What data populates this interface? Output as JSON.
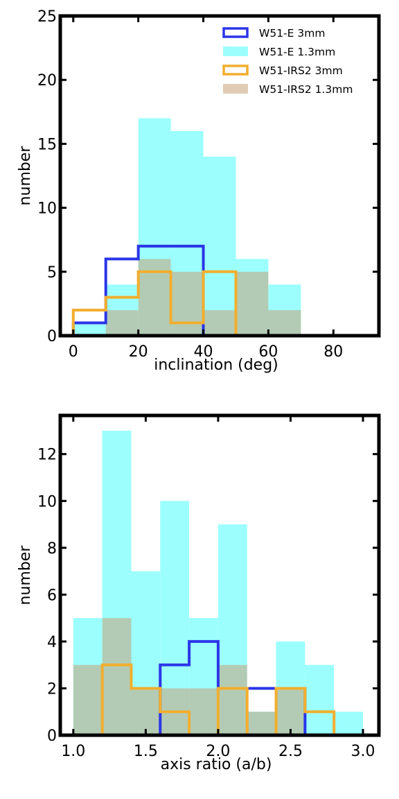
{
  "chart_data": [
    {
      "type": "histogram",
      "xlabel": "inclination (deg)",
      "ylabel": "number",
      "xlim": [
        -4,
        94
      ],
      "ylim": [
        0,
        25
      ],
      "xticks": [
        0,
        20,
        40,
        60,
        80
      ],
      "xtick_labels": [
        "0",
        "20",
        "40",
        "60",
        "80"
      ],
      "yticks": [
        0,
        5,
        10,
        15,
        20,
        25
      ],
      "ytick_labels": [
        "0",
        "5",
        "10",
        "15",
        "20",
        "25"
      ],
      "bin_edges": [
        0,
        10,
        20,
        30,
        40,
        50,
        60,
        70,
        80,
        90
      ],
      "legend_position": "top-right",
      "series": [
        {
          "name": "W51-E 3mm",
          "style": "step",
          "color": "#2b35e8",
          "counts": [
            1,
            6,
            7,
            7,
            0,
            0,
            0,
            0,
            0
          ]
        },
        {
          "name": "W51-E 1.3mm",
          "style": "filled",
          "color": "#9cfffd",
          "counts": [
            1,
            4,
            17,
            16,
            14,
            6,
            4,
            0,
            0
          ]
        },
        {
          "name": "W51-IRS2 3mm",
          "style": "step",
          "color": "#f2ae2e",
          "counts": [
            2,
            3,
            5,
            1,
            5,
            0,
            0,
            0,
            0
          ]
        },
        {
          "name": "W51-IRS2 1.3mm",
          "style": "filled",
          "color": "#c7a078",
          "counts": [
            0,
            2,
            6,
            5,
            2,
            5,
            2,
            0,
            0
          ]
        }
      ]
    },
    {
      "type": "histogram",
      "xlabel": "axis ratio (a/b)",
      "ylabel": "number",
      "xlim": [
        0.91,
        3.11
      ],
      "ylim": [
        0,
        13.65
      ],
      "xticks": [
        1.0,
        1.5,
        2.0,
        2.5,
        3.0
      ],
      "xtick_labels": [
        "1.0",
        "1.5",
        "2.0",
        "2.5",
        "3.0"
      ],
      "yticks": [
        0,
        2,
        4,
        6,
        8,
        10,
        12
      ],
      "ytick_labels": [
        "0",
        "2",
        "4",
        "6",
        "8",
        "10",
        "12"
      ],
      "bin_edges": [
        1.0,
        1.2,
        1.4,
        1.6,
        1.8,
        2.0,
        2.2,
        2.4,
        2.6,
        2.8,
        3.0
      ],
      "series": [
        {
          "name": "W51-E 3mm",
          "style": "step",
          "color": "#2b35e8",
          "counts": [
            0,
            0,
            0,
            3,
            4,
            2,
            2,
            2,
            0,
            0
          ]
        },
        {
          "name": "W51-E 1.3mm",
          "style": "filled",
          "color": "#9cfffd",
          "counts": [
            5,
            13,
            7,
            10,
            5,
            9,
            1,
            4,
            3,
            1
          ]
        },
        {
          "name": "W51-IRS2 3mm",
          "style": "step",
          "color": "#f2ae2e",
          "counts": [
            0,
            3,
            2,
            1,
            0,
            2,
            0,
            2,
            1,
            0
          ]
        },
        {
          "name": "W51-IRS2 1.3mm",
          "style": "filled",
          "color": "#c7a078",
          "counts": [
            3,
            5,
            2,
            2,
            2,
            3,
            1,
            2,
            0,
            0
          ]
        }
      ]
    }
  ]
}
